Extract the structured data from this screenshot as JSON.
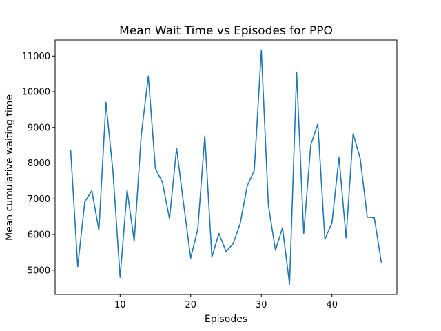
{
  "chart_data": {
    "type": "line",
    "title": "Mean Wait Time vs Episodes for PPO",
    "xlabel": "Episodes",
    "ylabel": "Mean cumulative waiting time",
    "xlim": [
      0.8,
      49.2
    ],
    "ylim": [
      4320,
      11450
    ],
    "xticks": [
      10,
      20,
      30,
      40
    ],
    "yticks": [
      5000,
      6000,
      7000,
      8000,
      9000,
      10000,
      11000
    ],
    "grid": false,
    "line_color": "#1f77b4",
    "series": [
      {
        "x": [
          3,
          4,
          5,
          6,
          7,
          8,
          9,
          10,
          11,
          12,
          13,
          14,
          15,
          16,
          17,
          18,
          19,
          20,
          21,
          22,
          23,
          24,
          25,
          26,
          27,
          28,
          29,
          30,
          31,
          32,
          33,
          34,
          35,
          36,
          37,
          38,
          39,
          40,
          41,
          42,
          43,
          44,
          45,
          46,
          47
        ],
        "values": [
          8360,
          5100,
          6910,
          7230,
          6120,
          9700,
          7750,
          4800,
          7240,
          5810,
          8780,
          10440,
          7850,
          7460,
          6440,
          8420,
          6850,
          5340,
          6150,
          8760,
          5370,
          6030,
          5520,
          5740,
          6300,
          7360,
          7790,
          11160,
          6820,
          5560,
          6190,
          4610,
          10540,
          6030,
          8510,
          9100,
          5870,
          6320,
          8160,
          5910,
          8830,
          8130,
          6490,
          6470,
          5210
        ]
      }
    ]
  }
}
